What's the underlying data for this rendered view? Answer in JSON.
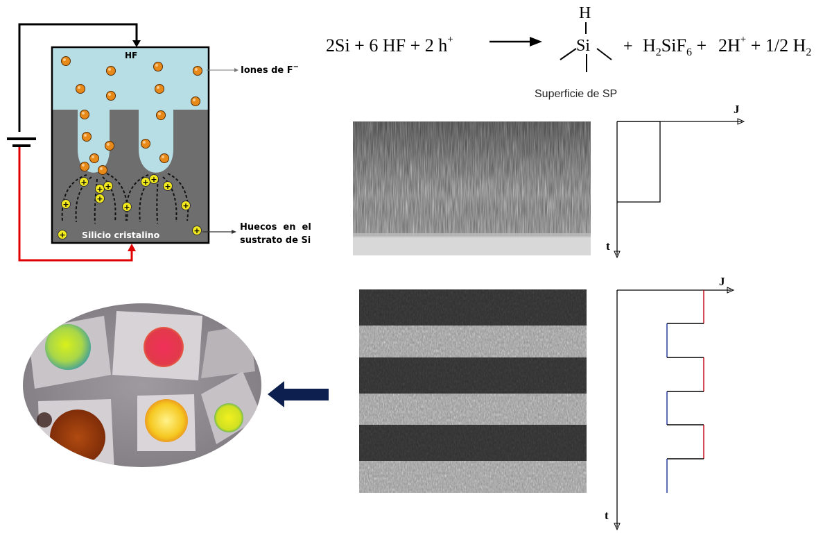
{
  "cell": {
    "electrolyte_label": "HF",
    "substrate_label": "Silicio cristalino",
    "ions_label": "Iones de F",
    "ions_label_superscript": "−",
    "holes_label_line1": "Huecos  en  el",
    "holes_label_line2": "sustrato de Si",
    "hole_symbol": "+"
  },
  "reaction": {
    "lhs_part1": "2Si + 6 HF + 2 h",
    "lhs_sup": "+",
    "h_atom": "H",
    "si_atom": "Si",
    "plus1": "+",
    "p2_base": "H",
    "p2_sub1": "2",
    "p2_mid": "SiF",
    "p2_sub2": "6",
    "p2_end": " +",
    "p3_base": "2H",
    "p3_sup": "+",
    "p3_end": " + 1/2 H",
    "p3_sub": "2",
    "surface_caption": "Superficie de SP"
  },
  "plot1": {
    "x_label": "J",
    "y_label": "t",
    "profile": "single-pulse"
  },
  "plot2": {
    "x_label": "J",
    "y_label": "t",
    "profile": "multilayer-steps",
    "high_color": "#c0000a",
    "low_color": "#1a2f9a"
  },
  "colors": {
    "electrolyte": "#b7dde5",
    "substrate": "#6e6e6e",
    "ion": "#e88a1a",
    "hole": "#f2ea1e",
    "wire_top": "#000000",
    "wire_bottom": "#e00000",
    "arrow": "#0c1f4f"
  }
}
